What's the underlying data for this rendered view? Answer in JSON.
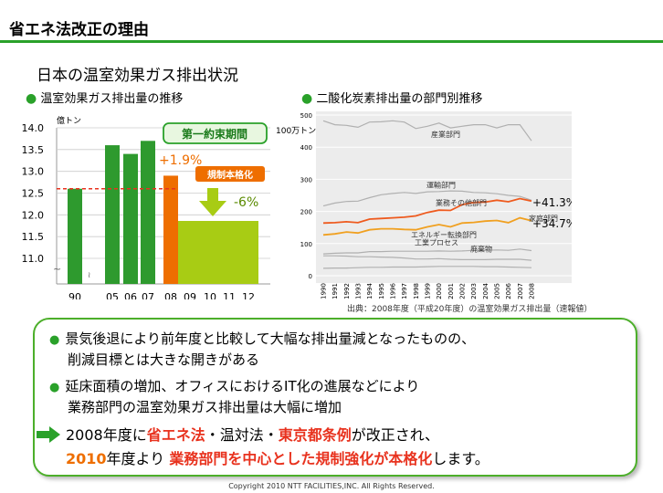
{
  "page_title": "省エネ法改正の理由",
  "section_title": "日本の温室効果ガス排出状況",
  "left_subtitle": "温室効果ガス排出量の推移",
  "right_subtitle": "二酸化炭素排出量の部門別推移",
  "source_note": "出典：2008年度（平成20年度）の温室効果ガス排出量（速報値）",
  "footer": "Copyright 2010 NTT FACILITIES,INC. All Rights Reserved.",
  "colors": {
    "accent_green": "#2aa12a",
    "bar_green": "#2e9a2e",
    "orange": "#ee6e00",
    "light_green": "#a8cc14",
    "red": "#e8321e"
  },
  "chart_data": [
    {
      "type": "bar",
      "unit_label": "億トン",
      "categories": [
        "90",
        "05",
        "06",
        "07",
        "08",
        "09",
        "10",
        "11",
        "12"
      ],
      "values": [
        12.6,
        13.6,
        13.4,
        13.7,
        12.9,
        null,
        null,
        null,
        null
      ],
      "ylim": [
        11.0,
        14.0
      ],
      "yticks": [
        "14.0",
        "13.5",
        "13.0",
        "12.5",
        "12.0",
        "11.5",
        "11.0"
      ],
      "target_block": {
        "from": "08",
        "to": "12",
        "value": 11.86
      },
      "baseline_dashed": 12.6,
      "annotations": {
        "period_box": "第一約束期間",
        "plus": "+1.9%",
        "regulation_badge": "規制本格化",
        "minus": "-6%",
        "axis_break": "~"
      }
    },
    {
      "type": "line",
      "unit_label": "100万トン",
      "x": [
        "1990",
        "1991",
        "1992",
        "1993",
        "1994",
        "1995",
        "1996",
        "1997",
        "1998",
        "1999",
        "2000",
        "2001",
        "2002",
        "2003",
        "2004",
        "2005",
        "2006",
        "2007",
        "2008"
      ],
      "ylim": [
        0,
        500
      ],
      "yticks": [
        "500",
        "400",
        "300",
        "200",
        "100",
        "0"
      ],
      "series": [
        {
          "name": "産業部門",
          "color": "#b0b0b0",
          "values": [
            482,
            470,
            468,
            462,
            478,
            479,
            482,
            478,
            458,
            465,
            475,
            460,
            465,
            470,
            470,
            460,
            470,
            470,
            420
          ]
        },
        {
          "name": "運輸部門",
          "color": "#b0b0b0",
          "values": [
            217,
            226,
            231,
            232,
            243,
            252,
            256,
            259,
            256,
            261,
            262,
            264,
            263,
            259,
            258,
            255,
            250,
            247,
            235
          ]
        },
        {
          "name": "業務その他部門",
          "color": "#ee5a1e",
          "values": [
            164,
            165,
            168,
            165,
            176,
            178,
            180,
            182,
            186,
            197,
            204,
            203,
            221,
            228,
            229,
            235,
            230,
            240,
            232
          ]
        },
        {
          "name": "家庭部門",
          "color": "#f0a020",
          "values": [
            127,
            130,
            136,
            133,
            143,
            146,
            146,
            144,
            143,
            152,
            159,
            152,
            164,
            166,
            170,
            172,
            165,
            180,
            171
          ]
        },
        {
          "name": "エネルギー転換部門",
          "color": "#b0b0b0",
          "values": [
            68,
            70,
            71,
            71,
            75,
            75,
            76,
            76,
            76,
            76,
            77,
            76,
            77,
            79,
            79,
            80,
            79,
            83,
            78
          ]
        },
        {
          "name": "工業プロセス",
          "color": "#b0b0b0",
          "values": [
            62,
            62,
            61,
            59,
            59,
            58,
            57,
            55,
            52,
            52,
            53,
            51,
            50,
            50,
            50,
            51,
            51,
            51,
            48
          ]
        },
        {
          "name": "廃棄物",
          "color": "#b0b0b0",
          "values": [
            23,
            24,
            24,
            25,
            26,
            26,
            27,
            27,
            27,
            28,
            29,
            29,
            29,
            29,
            28,
            28,
            27,
            26,
            25
          ]
        }
      ],
      "annotations": {
        "業務その他部門": "+41.3%",
        "家庭部門": "+34.7%"
      }
    }
  ],
  "panel": {
    "line1": "景気後退により前年度と比較して大幅な排出量減となったものの、",
    "line2": "削減目標とは大きな開きがある",
    "line3": "延床面積の増加、オフィスにおけるIT化の進展などにより",
    "line4": "業務部門の温室効果ガス排出量は大幅に増加",
    "line5_a": "2008年度に",
    "line5_b": "省エネ法",
    "line5_c": "・温対法・",
    "line5_d": "東京都条例",
    "line5_e": "が改正され、",
    "line6_a": "2010",
    "line6_b": "年度より",
    "line6_c": "業務部門を中心とした規制強化が本格化",
    "line6_d": "します。"
  }
}
